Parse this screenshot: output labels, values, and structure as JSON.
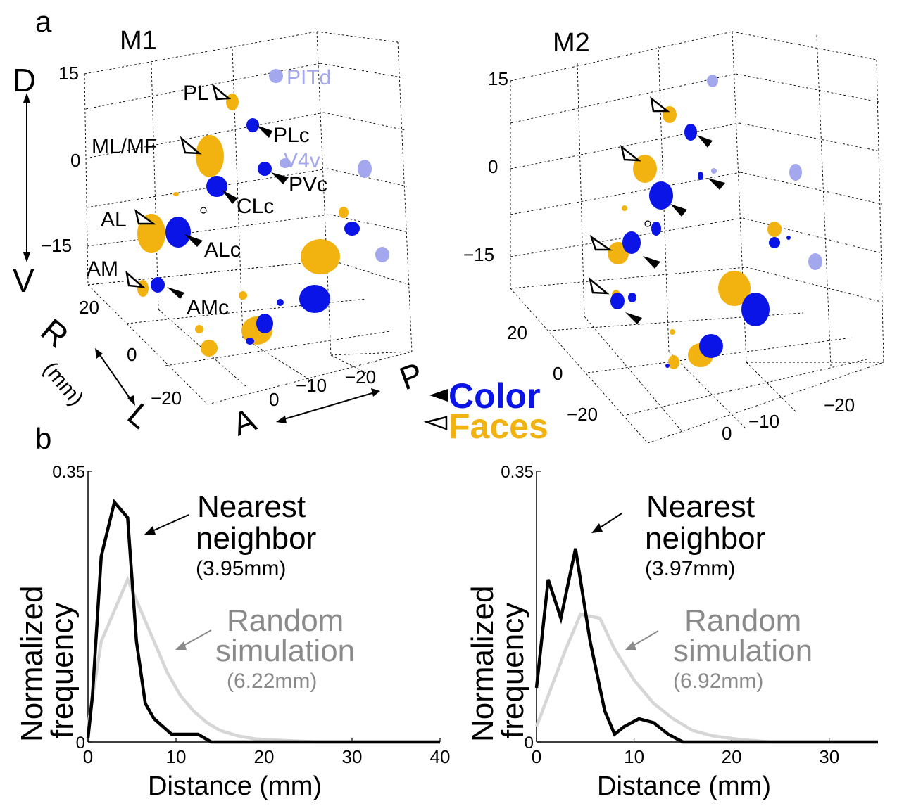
{
  "colors": {
    "color_clusters": "#0a14e6",
    "face_patches": "#f2b310",
    "reference_areas": "#a3a8ee",
    "nearest_line": "#000000",
    "random_line": "#d6d6d6",
    "random_text": "#8a8a8a"
  },
  "panel_a": {
    "letter": "a",
    "legend": {
      "color": "Color",
      "faces": "Faces",
      "color_marker_icon": "filled-triangle-arrow",
      "faces_marker_icon": "open-triangle-arrow"
    },
    "axes": {
      "vertical_top": "D",
      "vertical_bottom": "V",
      "lateral_top": "R",
      "lateral_bottom": "L",
      "lateral_unit": "(mm)",
      "ap_left": "A",
      "ap_right": "P"
    },
    "m1": {
      "title": "M1",
      "z_ticks": [
        "15",
        "0",
        "−15"
      ],
      "lateral_ticks": [
        "20",
        "0",
        "−20"
      ],
      "ap_ticks": [
        "0",
        "−10",
        "−20"
      ],
      "face_patch_labels": [
        "PL",
        "ML/MF",
        "AL",
        "AM"
      ],
      "color_labels": [
        "PLc",
        "PVc",
        "CLc",
        "ALc",
        "AMc"
      ],
      "reference_labels": [
        "PITd",
        "V4v"
      ]
    },
    "m2": {
      "title": "M2",
      "z_ticks": [
        "15",
        "0",
        "−15"
      ],
      "lateral_ticks": [
        "20",
        "0",
        "−20"
      ],
      "ap_ticks": [
        "0",
        "−10",
        "−20"
      ]
    }
  },
  "panel_b": {
    "letter": "b",
    "ylabel_line1": "Normalized",
    "ylabel_line2": "frequency",
    "xlabel": "Distance (mm)"
  },
  "chart_data": [
    {
      "type": "line",
      "title": "M1",
      "xlabel": "Distance (mm)",
      "ylabel": "Normalized frequency",
      "xlim": [
        0,
        40
      ],
      "ylim": [
        0,
        0.35
      ],
      "xticks": [
        "0",
        "10",
        "20",
        "30",
        "40"
      ],
      "yticks": [
        "0",
        "0.35"
      ],
      "series": [
        {
          "name": "Nearest neighbor",
          "median_label": "(3.95mm)",
          "x": [
            0,
            0.5,
            1.5,
            3,
            4.5,
            5.5,
            6.5,
            7.5,
            8.5,
            9.5,
            11,
            12.5,
            14,
            15,
            40
          ],
          "y": [
            0.005,
            0.06,
            0.24,
            0.31,
            0.29,
            0.13,
            0.05,
            0.03,
            0.02,
            0.01,
            0.01,
            0.01,
            0.0,
            0.0,
            0.0
          ]
        },
        {
          "name": "Random simulation",
          "median_label": "(6.22mm)",
          "x": [
            0,
            1.5,
            3,
            4.5,
            6,
            7.5,
            9,
            10.5,
            12,
            13.5,
            15,
            17,
            19,
            22,
            26,
            40
          ],
          "y": [
            0.02,
            0.13,
            0.17,
            0.21,
            0.17,
            0.13,
            0.09,
            0.06,
            0.04,
            0.025,
            0.015,
            0.008,
            0.004,
            0.002,
            0.0,
            0.0
          ]
        }
      ]
    },
    {
      "type": "line",
      "title": "M2",
      "xlabel": "Distance (mm)",
      "ylabel": "Normalized frequency",
      "xlim": [
        0,
        35
      ],
      "ylim": [
        0,
        0.35
      ],
      "xticks": [
        "0",
        "10",
        "20",
        "30"
      ],
      "yticks": [
        "0",
        "0.35"
      ],
      "series": [
        {
          "name": "Nearest neighbor",
          "median_label": "(3.97mm)",
          "x": [
            0,
            1.2,
            2.5,
            4,
            5.5,
            7,
            8,
            9,
            10.5,
            12,
            13.5,
            15,
            35
          ],
          "y": [
            0.07,
            0.21,
            0.16,
            0.25,
            0.13,
            0.04,
            0.01,
            0.02,
            0.03,
            0.025,
            0.01,
            0.0,
            0.0
          ]
        },
        {
          "name": "Random simulation",
          "median_label": "(6.92mm)",
          "x": [
            0,
            1.5,
            3,
            4.5,
            6.5,
            8,
            10,
            12,
            14,
            16,
            18,
            21,
            24,
            35
          ],
          "y": [
            0.02,
            0.07,
            0.12,
            0.165,
            0.16,
            0.12,
            0.08,
            0.05,
            0.03,
            0.015,
            0.008,
            0.003,
            0.0,
            0.0
          ]
        }
      ]
    }
  ]
}
